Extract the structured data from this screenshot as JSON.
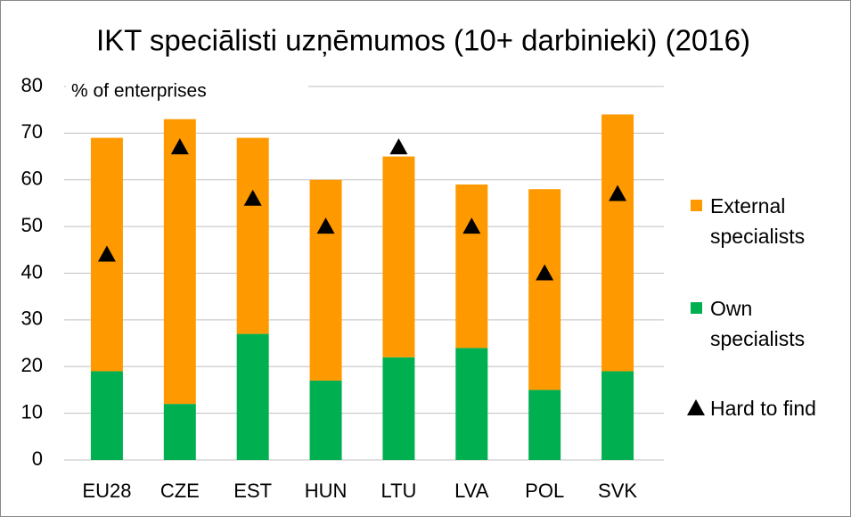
{
  "chart_data": {
    "type": "stacked_bar",
    "title": "IKT speciālisti uzņēmumos  (10+ darbinieki) (2016)",
    "y_label": "% of enterprises",
    "categories": [
      "EU28",
      "CZE",
      "EST",
      "HUN",
      "LTU",
      "LVA",
      "POL",
      "SVK"
    ],
    "series": [
      {
        "name": "Own specialists",
        "color": "#00b050",
        "values": [
          19,
          12,
          27,
          17,
          22,
          24,
          15,
          19
        ]
      },
      {
        "name": "External specialists",
        "color": "#ff9900",
        "values": [
          50,
          61,
          42,
          43,
          43,
          35,
          43,
          55
        ]
      },
      {
        "name": "Hard to find",
        "color": "#000000",
        "type": "marker",
        "values": [
          44,
          67,
          56,
          50,
          67,
          50,
          40,
          57
        ]
      }
    ],
    "ylim": [
      0,
      80
    ],
    "yticks": [
      0,
      10,
      20,
      30,
      40,
      50,
      60,
      70,
      80
    ],
    "grid": true,
    "legend": "right"
  }
}
